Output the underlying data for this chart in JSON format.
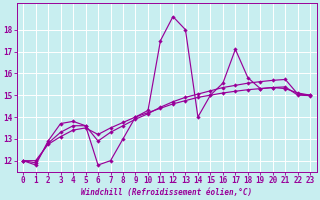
{
  "title": "",
  "xlabel": "Windchill (Refroidissement éolien,°C)",
  "ylabel": "",
  "background_color": "#c8eef0",
  "grid_color": "#ffffff",
  "line_color": "#990099",
  "xlim": [
    -0.5,
    23.5
  ],
  "ylim": [
    11.5,
    19.2
  ],
  "yticks": [
    12,
    13,
    14,
    15,
    16,
    17,
    18
  ],
  "xticks": [
    0,
    1,
    2,
    3,
    4,
    5,
    6,
    7,
    8,
    9,
    10,
    11,
    12,
    13,
    14,
    15,
    16,
    17,
    18,
    19,
    20,
    21,
    22,
    23
  ],
  "x": [
    0,
    1,
    2,
    3,
    4,
    5,
    6,
    7,
    8,
    9,
    10,
    11,
    12,
    13,
    14,
    15,
    16,
    17,
    18,
    19,
    20,
    21,
    22,
    23
  ],
  "y_main": [
    12.0,
    11.8,
    12.9,
    13.7,
    13.8,
    13.6,
    11.8,
    12.0,
    13.0,
    14.0,
    14.3,
    17.5,
    18.6,
    18.0,
    14.0,
    15.0,
    15.55,
    17.1,
    15.8,
    15.3,
    15.35,
    15.3,
    15.1,
    15.0
  ],
  "y_smooth1": [
    12.0,
    11.9,
    12.8,
    13.3,
    13.6,
    13.6,
    12.9,
    13.3,
    13.6,
    13.9,
    14.15,
    14.45,
    14.7,
    14.9,
    15.05,
    15.2,
    15.35,
    15.45,
    15.55,
    15.62,
    15.68,
    15.72,
    15.05,
    15.0
  ],
  "y_smooth2": [
    12.0,
    12.0,
    12.75,
    13.1,
    13.4,
    13.5,
    13.2,
    13.5,
    13.75,
    14.0,
    14.2,
    14.4,
    14.6,
    14.75,
    14.9,
    15.0,
    15.1,
    15.18,
    15.25,
    15.3,
    15.35,
    15.38,
    15.0,
    14.98
  ]
}
